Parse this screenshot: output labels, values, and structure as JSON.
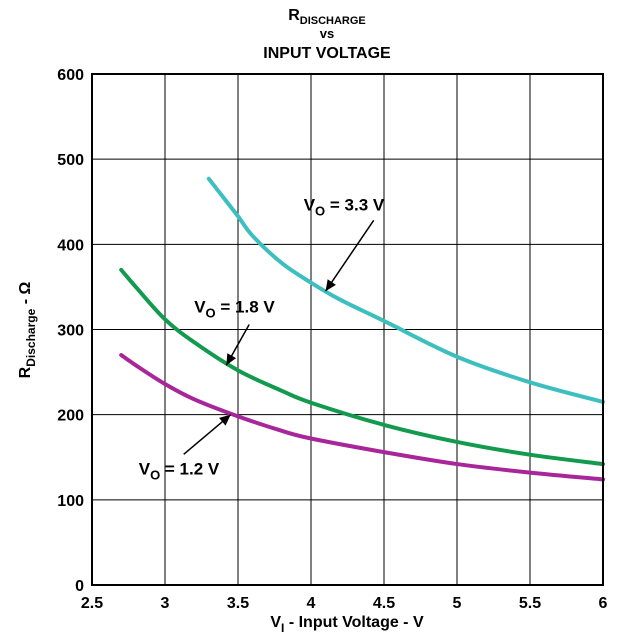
{
  "chart_data": {
    "type": "line",
    "title": {
      "line1_main": "R",
      "line1_sub": "DISCHARGE",
      "line2": "vs",
      "line3": "INPUT VOLTAGE"
    },
    "xlabel": {
      "main": "V",
      "sub": "I",
      "rest": " - Input Voltage - V"
    },
    "ylabel": {
      "main": "R",
      "sub": "Discharge",
      "rest": " - Ω"
    },
    "xlim": [
      2.5,
      6
    ],
    "ylim": [
      0,
      600
    ],
    "xticks": [
      "2.5",
      "3",
      "3.5",
      "4",
      "4.5",
      "5",
      "5.5",
      "6"
    ],
    "yticks": [
      "0",
      "100",
      "200",
      "300",
      "400",
      "500",
      "600"
    ],
    "grid": true,
    "legend": "none",
    "series": [
      {
        "name": "VO = 3.3 V",
        "color": "#3ebfbf",
        "x": [
          3.3,
          3.4,
          3.5,
          3.6,
          3.8,
          4.0,
          4.2,
          4.5,
          5.0,
          5.5,
          6.0
        ],
        "y": [
          477,
          455,
          433,
          410,
          378,
          355,
          335,
          310,
          268,
          238,
          215
        ]
      },
      {
        "name": "VO = 1.8 V",
        "color": "#129a4e",
        "x": [
          2.7,
          2.8,
          3.0,
          3.2,
          3.5,
          3.8,
          4.0,
          4.5,
          5.0,
          5.5,
          6.0
        ],
        "y": [
          370,
          350,
          312,
          285,
          252,
          228,
          214,
          188,
          168,
          153,
          142
        ]
      },
      {
        "name": "VO = 1.2 V",
        "color": "#a8259a",
        "x": [
          2.7,
          2.8,
          3.0,
          3.2,
          3.5,
          3.8,
          4.0,
          4.5,
          5.0,
          5.5,
          6.0
        ],
        "y": [
          270,
          258,
          236,
          218,
          198,
          181,
          172,
          156,
          142,
          132,
          124
        ]
      }
    ],
    "annotations": [
      {
        "main": "V",
        "sub": "O",
        "rest": " = 3.3 V",
        "x": 3.95,
        "y": 440,
        "target": [
          4.1,
          345
        ]
      },
      {
        "main": "V",
        "sub": "O",
        "rest": " = 1.8 V",
        "x": 3.2,
        "y": 320,
        "target": [
          3.42,
          258
        ]
      },
      {
        "main": "V",
        "sub": "O",
        "rest": " = 1.2 V",
        "x": 2.82,
        "y": 130,
        "target": [
          3.45,
          200
        ]
      }
    ]
  }
}
